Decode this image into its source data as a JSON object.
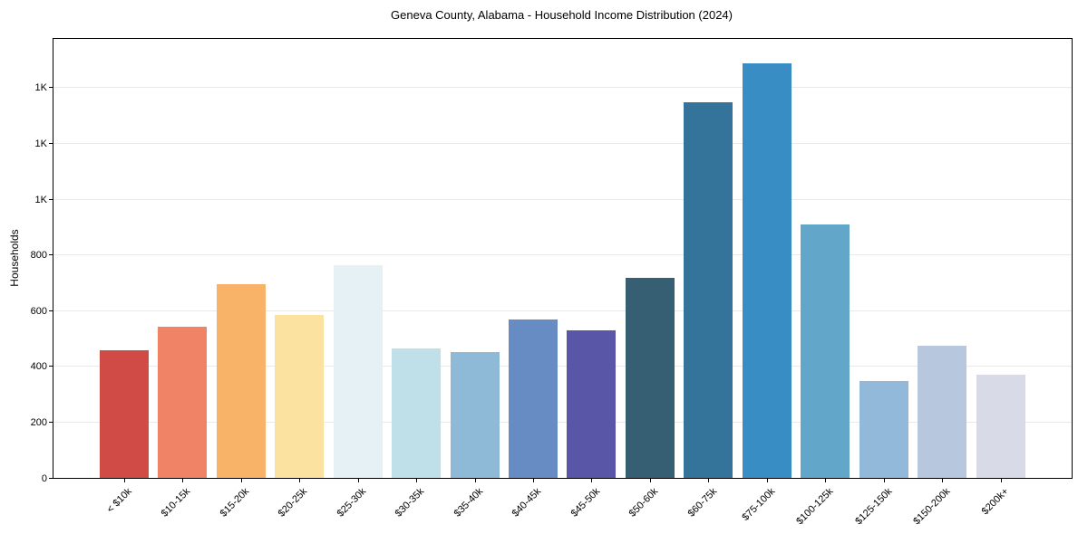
{
  "title": "Geneva County, Alabama - Household Income Distribution (2024)",
  "chart_data": {
    "type": "bar",
    "title": "Geneva County, Alabama - Household Income Distribution (2024)",
    "xlabel": "",
    "ylabel": "Households",
    "categories": [
      "< $10k",
      "$10-15k",
      "$15-20k",
      "$20-25k",
      "$25-30k",
      "$30-35k",
      "$35-40k",
      "$40-45k",
      "$45-50k",
      "$50-60k",
      "$60-75k",
      "$75-100k",
      "$100-125k",
      "$125-150k",
      "$150-200k",
      "$200k+"
    ],
    "values": [
      458,
      541,
      694,
      586,
      762,
      465,
      451,
      567,
      530,
      717,
      1349,
      1487,
      908,
      346,
      474,
      371
    ],
    "bar_colors": [
      "#d04a46",
      "#f08266",
      "#f8b369",
      "#fbe2a1",
      "#e6f1f5",
      "#bfdfe9",
      "#8fbad7",
      "#678cc3",
      "#5956a7",
      "#365f73",
      "#34749a",
      "#388ec4",
      "#62a7ca",
      "#92b9da",
      "#b7c7de",
      "#d8dae7"
    ],
    "ylim": [
      0,
      1575
    ],
    "ytick_values": [
      0,
      200,
      400,
      600,
      800,
      1000,
      1200,
      1400
    ],
    "ytick_labels": [
      "0",
      "200",
      "400",
      "600",
      "800",
      "1K",
      "1K",
      "1K"
    ],
    "grid": "horizontal",
    "legend": "none",
    "background_color": "#ffffff",
    "gridline_color": "#e9e9e9",
    "spine_color": "#000000"
  }
}
